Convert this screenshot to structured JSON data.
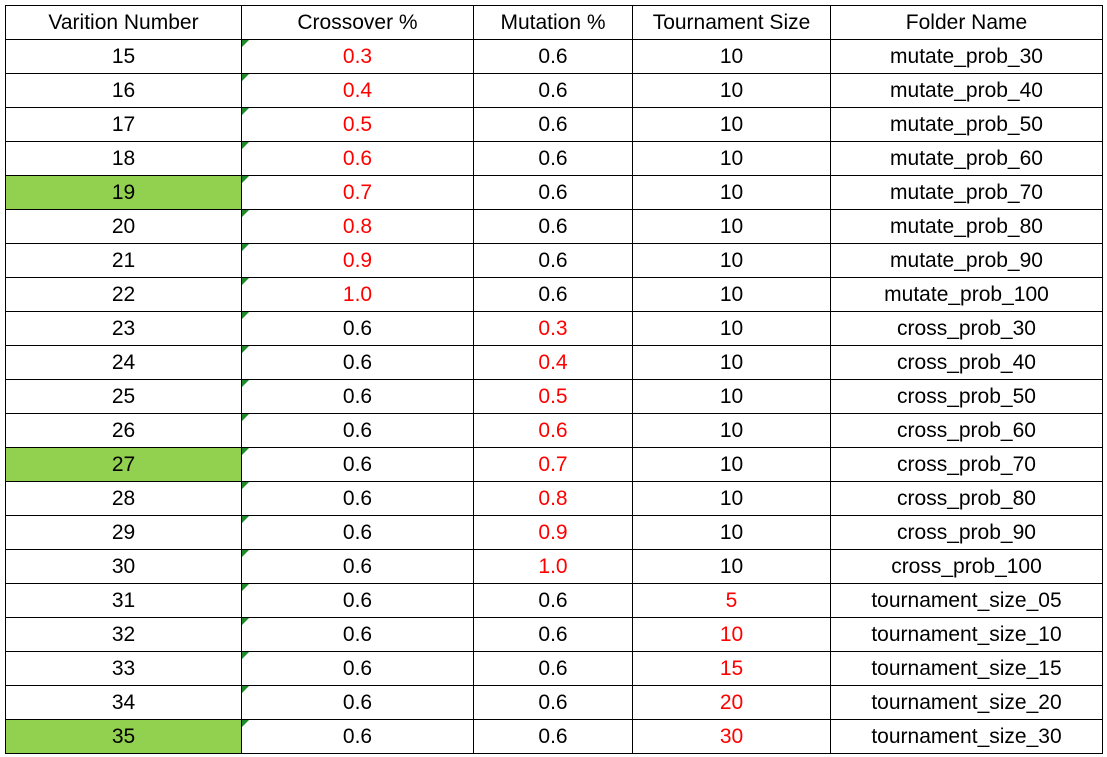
{
  "headers": [
    "Varition Number",
    "Crossover %",
    "Mutation %",
    "Tournament Size",
    "Folder Name"
  ],
  "colors": {
    "highlight": "#92d050",
    "changed_value": "#ff0000",
    "comment_marker": "#1e8a2a"
  },
  "rows": [
    {
      "num": "15",
      "cross": "0.3",
      "mut": "0.6",
      "tour": "10",
      "folder": "mutate_prob_30",
      "red": "cross",
      "highlight": false
    },
    {
      "num": "16",
      "cross": "0.4",
      "mut": "0.6",
      "tour": "10",
      "folder": "mutate_prob_40",
      "red": "cross",
      "highlight": false
    },
    {
      "num": "17",
      "cross": "0.5",
      "mut": "0.6",
      "tour": "10",
      "folder": "mutate_prob_50",
      "red": "cross",
      "highlight": false
    },
    {
      "num": "18",
      "cross": "0.6",
      "mut": "0.6",
      "tour": "10",
      "folder": "mutate_prob_60",
      "red": "cross",
      "highlight": false
    },
    {
      "num": "19",
      "cross": "0.7",
      "mut": "0.6",
      "tour": "10",
      "folder": "mutate_prob_70",
      "red": "cross",
      "highlight": true
    },
    {
      "num": "20",
      "cross": "0.8",
      "mut": "0.6",
      "tour": "10",
      "folder": "mutate_prob_80",
      "red": "cross",
      "highlight": false
    },
    {
      "num": "21",
      "cross": "0.9",
      "mut": "0.6",
      "tour": "10",
      "folder": "mutate_prob_90",
      "red": "cross",
      "highlight": false
    },
    {
      "num": "22",
      "cross": "1.0",
      "mut": "0.6",
      "tour": "10",
      "folder": "mutate_prob_100",
      "red": "cross",
      "highlight": false
    },
    {
      "num": "23",
      "cross": "0.6",
      "mut": "0.3",
      "tour": "10",
      "folder": "cross_prob_30",
      "red": "mut",
      "highlight": false
    },
    {
      "num": "24",
      "cross": "0.6",
      "mut": "0.4",
      "tour": "10",
      "folder": "cross_prob_40",
      "red": "mut",
      "highlight": false
    },
    {
      "num": "25",
      "cross": "0.6",
      "mut": "0.5",
      "tour": "10",
      "folder": "cross_prob_50",
      "red": "mut",
      "highlight": false
    },
    {
      "num": "26",
      "cross": "0.6",
      "mut": "0.6",
      "tour": "10",
      "folder": "cross_prob_60",
      "red": "mut",
      "highlight": false
    },
    {
      "num": "27",
      "cross": "0.6",
      "mut": "0.7",
      "tour": "10",
      "folder": "cross_prob_70",
      "red": "mut",
      "highlight": true
    },
    {
      "num": "28",
      "cross": "0.6",
      "mut": "0.8",
      "tour": "10",
      "folder": "cross_prob_80",
      "red": "mut",
      "highlight": false
    },
    {
      "num": "29",
      "cross": "0.6",
      "mut": "0.9",
      "tour": "10",
      "folder": "cross_prob_90",
      "red": "mut",
      "highlight": false
    },
    {
      "num": "30",
      "cross": "0.6",
      "mut": "1.0",
      "tour": "10",
      "folder": "cross_prob_100",
      "red": "mut",
      "highlight": false
    },
    {
      "num": "31",
      "cross": "0.6",
      "mut": "0.6",
      "tour": "5",
      "folder": "tournament_size_05",
      "red": "tour",
      "highlight": false
    },
    {
      "num": "32",
      "cross": "0.6",
      "mut": "0.6",
      "tour": "10",
      "folder": "tournament_size_10",
      "red": "tour",
      "highlight": false
    },
    {
      "num": "33",
      "cross": "0.6",
      "mut": "0.6",
      "tour": "15",
      "folder": "tournament_size_15",
      "red": "tour",
      "highlight": false
    },
    {
      "num": "34",
      "cross": "0.6",
      "mut": "0.6",
      "tour": "20",
      "folder": "tournament_size_20",
      "red": "tour",
      "highlight": false
    },
    {
      "num": "35",
      "cross": "0.6",
      "mut": "0.6",
      "tour": "30",
      "folder": "tournament_size_30",
      "red": "tour",
      "highlight": true
    }
  ]
}
